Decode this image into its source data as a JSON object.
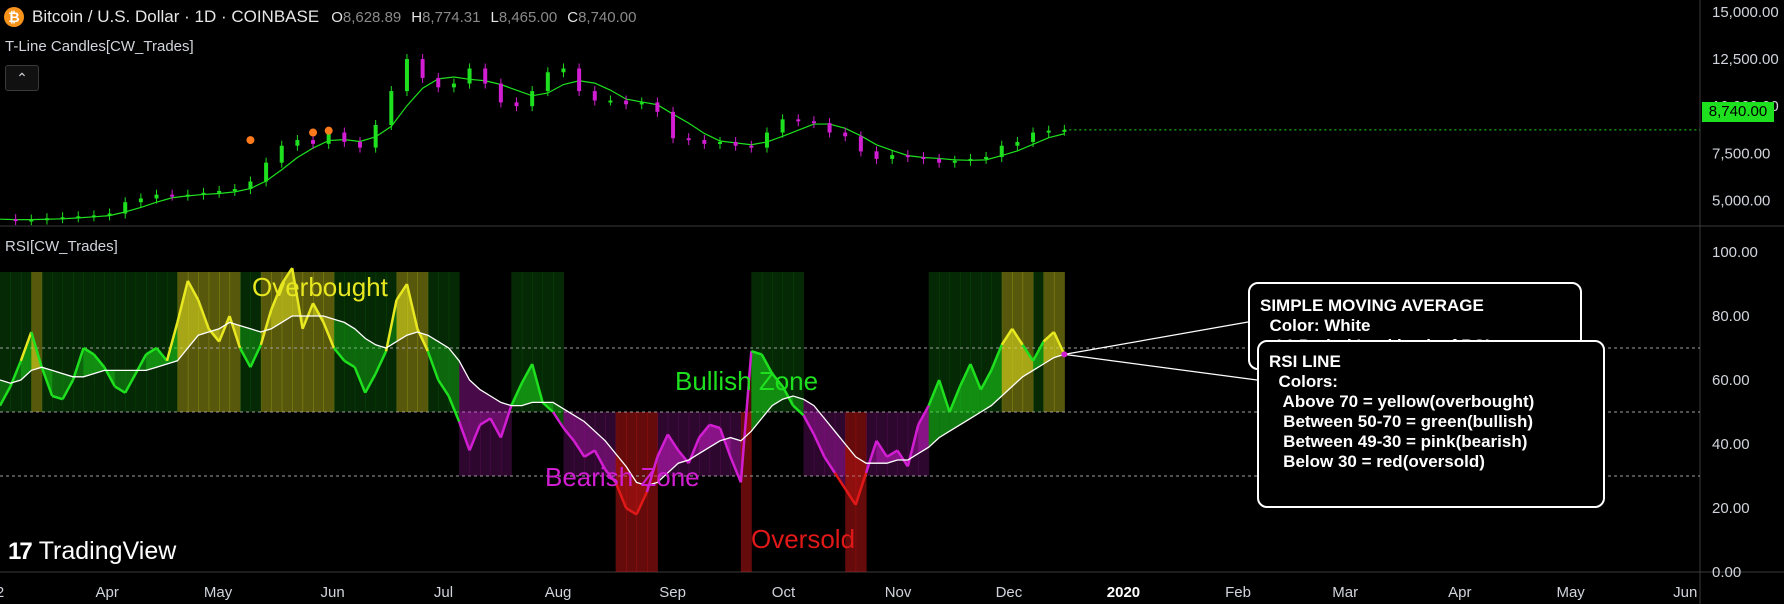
{
  "header": {
    "symbol": "Bitcoin / U.S. Dollar · 1D · COINBASE",
    "coin_glyph": "₿",
    "ohlc": [
      {
        "k": "O",
        "v": "8,628.89"
      },
      {
        "k": "H",
        "v": "8,774.31"
      },
      {
        "k": "L",
        "v": "8,465.00"
      },
      {
        "k": "C",
        "v": "8,740.00"
      }
    ]
  },
  "price_indicator": "T-Line Candles[CW_Trades]",
  "collapse_glyph": "⌃",
  "rsi_indicator": "RSI[CW_Trades]",
  "branding": {
    "mark": "17",
    "text": "TradingView"
  },
  "current_price_label": "8,740.00",
  "colors": {
    "bullish": "#1ee01e",
    "bearish": "#d21ed2",
    "overbought": "#e8e820",
    "oversold": "#e01818",
    "sma": "#ffffff",
    "accent_price": "#1ee01e"
  },
  "zone_labels": {
    "overbought": "Overbought",
    "bullish": "Bullish Zone",
    "bearish": "Bearish Zone",
    "oversold": "Oversold"
  },
  "callout_sma": {
    "lines": [
      "SIMPLE MOVING AVERAGE",
      "  Color: White",
      "   14-Period Lookback of RSI"
    ]
  },
  "callout_rsi": {
    "lines": [
      "RSI LINE",
      "  Colors:",
      "   Above 70 = yellow(overbought)",
      "   Between 50-70 = green(bullish)",
      "   Between 49-30 = pink(bearish)",
      "   Below 30 = red(oversold)"
    ]
  },
  "chart_data": [
    {
      "type": "line",
      "title": "",
      "ylim": [
        3000,
        15000
      ],
      "y_ticks": [
        "15,000.00",
        "12,500.00",
        "10,000.00",
        "7,500.00",
        "5,000.00"
      ],
      "y_tick_values": [
        15000,
        12500,
        10000,
        7500,
        5000
      ],
      "x_tick_labels": [
        "2",
        "Apr",
        "May",
        "Jun",
        "Jul",
        "Aug",
        "Sep",
        "Oct",
        "Nov",
        "Dec",
        "2020",
        "Feb",
        "Mar",
        "Apr",
        "May",
        "Jun"
      ],
      "x_tick_days": [
        0,
        29,
        59,
        90,
        120,
        151,
        182,
        212,
        243,
        273,
        304,
        335,
        364,
        395,
        425,
        456
      ],
      "series": [
        {
          "values": [
            4000,
            3950,
            3980,
            4050,
            4100,
            4150,
            4200,
            4300,
            4900,
            5100,
            5300,
            5250,
            5300,
            5400,
            5500,
            5600,
            6000,
            7000,
            7900,
            8200,
            8000,
            8600,
            8100,
            7800,
            9000,
            10800,
            12500,
            11500,
            11000,
            11200,
            12000,
            11200,
            10200,
            10000,
            10800,
            11800,
            12000,
            10800,
            10300,
            10300,
            10100,
            10200,
            9700,
            8300,
            8200,
            8000,
            8100,
            7900,
            7800,
            8600,
            9300,
            9200,
            9100,
            8600,
            8400,
            7600,
            7200,
            7400,
            7300,
            7200,
            7000,
            7100,
            7200,
            7300,
            7900,
            8100,
            8600,
            8700,
            8740
          ]
        }
      ],
      "series_end_day": 288
    },
    {
      "type": "line",
      "title": "",
      "ylim": [
        0,
        100
      ],
      "y_ticks": [
        "100.00",
        "80.00",
        "60.00",
        "40.00",
        "20.00",
        "0.00"
      ],
      "y_tick_values": [
        100,
        80,
        60,
        40,
        20,
        0
      ],
      "levels": [
        70,
        50,
        30
      ],
      "series": [
        {
          "values": [
            52,
            58,
            66,
            75,
            64,
            55,
            54,
            60,
            70,
            68,
            64,
            58,
            56,
            62,
            68,
            70,
            66,
            78,
            91,
            85,
            76,
            72,
            80,
            70,
            64,
            71,
            82,
            90,
            95,
            76,
            84,
            78,
            70,
            66,
            64,
            56,
            62,
            69,
            85,
            90,
            76,
            69,
            60,
            55,
            47,
            38,
            46,
            48,
            42,
            52,
            59,
            65,
            53,
            50,
            45,
            41,
            36,
            38,
            32,
            28,
            20,
            18,
            25,
            36,
            43,
            38,
            34,
            42,
            46,
            45,
            36,
            28,
            69,
            68,
            62,
            58,
            52,
            49,
            43,
            36,
            31,
            26,
            21,
            31,
            41,
            36,
            38,
            33,
            46,
            52,
            60,
            50,
            58,
            65,
            57,
            63,
            71,
            76,
            71,
            66,
            72,
            75,
            68
          ]
        },
        {
          "values": [
            60,
            59,
            60,
            63,
            64,
            63,
            62,
            61,
            61,
            62,
            63,
            63,
            63,
            63,
            63,
            64,
            65,
            66,
            70,
            74,
            75,
            76,
            78,
            77,
            76,
            75,
            76,
            78,
            80,
            80,
            80,
            80,
            79,
            78,
            76,
            73,
            71,
            70,
            72,
            74,
            75,
            74,
            72,
            70,
            66,
            60,
            57,
            55,
            53,
            52,
            52,
            53,
            53,
            53,
            51,
            49,
            47,
            44,
            41,
            37,
            33,
            28,
            27,
            28,
            31,
            34,
            35,
            37,
            39,
            41,
            42,
            41,
            44,
            48,
            52,
            54,
            55,
            54,
            52,
            48,
            44,
            40,
            36,
            34,
            34,
            34,
            35,
            35,
            37,
            39,
            42,
            44,
            46,
            48,
            50,
            52,
            55,
            58,
            61,
            63,
            65,
            67,
            68
          ]
        }
      ],
      "series_end_day": 288
    }
  ]
}
